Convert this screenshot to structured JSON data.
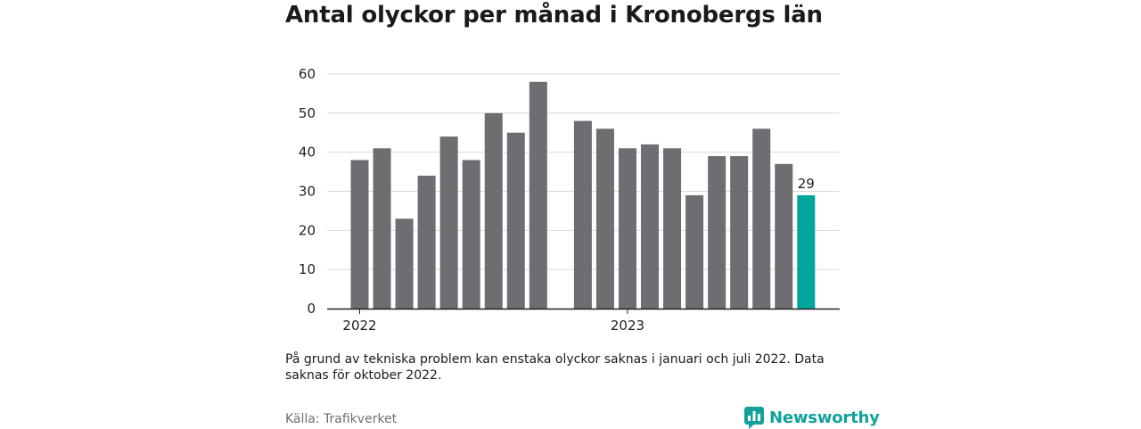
{
  "title": "Antal olyckor per månad i Kronobergs län",
  "footnote": "På grund av tekniska problem kan enstaka olyckor saknas i januari och juli 2022. Data saknas för oktober 2022.",
  "source": "Källa: Trafikverket",
  "brand": {
    "name": "Newsworthy",
    "color": "#12a29b"
  },
  "colors": {
    "bar": "#6e6d72",
    "highlight": "#00a69c",
    "grid": "#d9d9d9",
    "axis": "#222222"
  },
  "chart_data": {
    "type": "bar",
    "title": "Antal olyckor per månad i Kronobergs län",
    "xlabel": "",
    "ylabel": "",
    "ylim": [
      0,
      60
    ],
    "yticks": [
      0,
      10,
      20,
      30,
      40,
      50,
      60
    ],
    "grid": true,
    "x_ticks": [
      {
        "label": "2022",
        "at": "2022-01"
      },
      {
        "label": "2023",
        "at": "2023-01"
      }
    ],
    "categories": [
      "2022-01",
      "2022-02",
      "2022-03",
      "2022-04",
      "2022-05",
      "2022-06",
      "2022-07",
      "2022-08",
      "2022-09",
      "2022-10",
      "2022-11",
      "2022-12",
      "2023-01",
      "2023-02",
      "2023-03",
      "2023-04",
      "2023-05",
      "2023-06",
      "2023-07",
      "2023-08",
      "2023-09",
      "2023-10",
      "2023-11",
      "2023-12"
    ],
    "values": [
      38,
      41,
      23,
      34,
      44,
      38,
      50,
      45,
      58,
      null,
      48,
      46,
      41,
      42,
      41,
      29,
      39,
      39,
      46,
      37,
      29,
      null,
      null,
      null
    ],
    "highlight": {
      "category": "2023-09",
      "value": 29,
      "label": "29"
    }
  }
}
